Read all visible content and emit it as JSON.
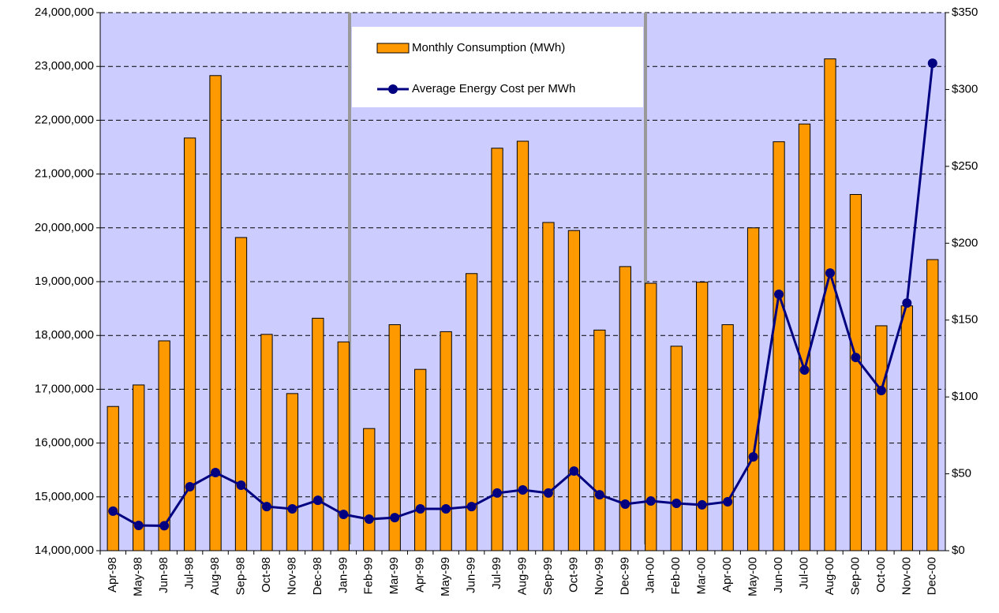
{
  "chart_data": {
    "type": "bar-line",
    "categories": [
      "Apr-98",
      "May-98",
      "Jun-98",
      "Jul-98",
      "Aug-98",
      "Sep-98",
      "Oct-98",
      "Nov-98",
      "Dec-98",
      "Jan-99",
      "Feb-99",
      "Mar-99",
      "Apr-99",
      "May-99",
      "Jun-99",
      "Jul-99",
      "Aug-99",
      "Sep-99",
      "Oct-99",
      "Nov-99",
      "Dec-99",
      "Jan-00",
      "Feb-00",
      "Mar-00",
      "Apr-00",
      "May-00",
      "Jun-00",
      "Jul-00",
      "Aug-00",
      "Sep-00",
      "Oct-00",
      "Nov-00",
      "Dec-00"
    ],
    "series": [
      {
        "name": "Monthly Consumption (MWh)",
        "type": "bar",
        "color": "#ff9900",
        "axis": "y",
        "values": [
          16680000,
          17080000,
          17900000,
          21670000,
          22830000,
          19820000,
          18020000,
          16920000,
          18320000,
          17880000,
          16270000,
          18200000,
          17370000,
          18070000,
          19150000,
          21480000,
          21610000,
          20100000,
          19950000,
          18100000,
          19280000,
          18970000,
          17800000,
          18990000,
          18200000,
          20000000,
          21600000,
          21930000,
          23140000,
          20620000,
          18180000,
          18550000,
          19410000
        ]
      },
      {
        "name": "Average Energy Cost per MWh",
        "type": "line",
        "color": "#000080",
        "axis": "y2",
        "values": [
          25.7,
          16.4,
          16.2,
          41.6,
          50.8,
          42.6,
          28.7,
          27.2,
          32.8,
          23.6,
          20.5,
          21.5,
          27.2,
          27.2,
          28.7,
          37.5,
          39.5,
          37.5,
          51.8,
          36.4,
          30.3,
          32.3,
          30.8,
          29.8,
          31.8,
          61,
          166.8,
          117.5,
          180.6,
          125.7,
          104.2,
          161.1,
          317.1
        ]
      }
    ],
    "ylim": [
      14000000,
      24000000
    ],
    "yticks": [
      {
        "value": 14000000,
        "label": "14,000,000"
      },
      {
        "value": 15000000,
        "label": "15,000,000"
      },
      {
        "value": 16000000,
        "label": "16,000,000"
      },
      {
        "value": 17000000,
        "label": "17,000,000"
      },
      {
        "value": 18000000,
        "label": "18,000,000"
      },
      {
        "value": 19000000,
        "label": "19,000,000"
      },
      {
        "value": 20000000,
        "label": "20,000,000"
      },
      {
        "value": 21000000,
        "label": "21,000,000"
      },
      {
        "value": 22000000,
        "label": "22,000,000"
      },
      {
        "value": 23000000,
        "label": "23,000,000"
      },
      {
        "value": 24000000,
        "label": "24,000,000"
      }
    ],
    "y2lim": [
      0,
      350
    ],
    "y2ticks": [
      {
        "value": 0,
        "label": "$0"
      },
      {
        "value": 50,
        "label": "$50"
      },
      {
        "value": 100,
        "label": "$100"
      },
      {
        "value": 150,
        "label": "$150"
      },
      {
        "value": 200,
        "label": "$200"
      },
      {
        "value": 250,
        "label": "$250"
      },
      {
        "value": 300,
        "label": "$300"
      },
      {
        "value": 350,
        "label": "$350"
      }
    ],
    "grid": true,
    "background": "#ccccff"
  }
}
